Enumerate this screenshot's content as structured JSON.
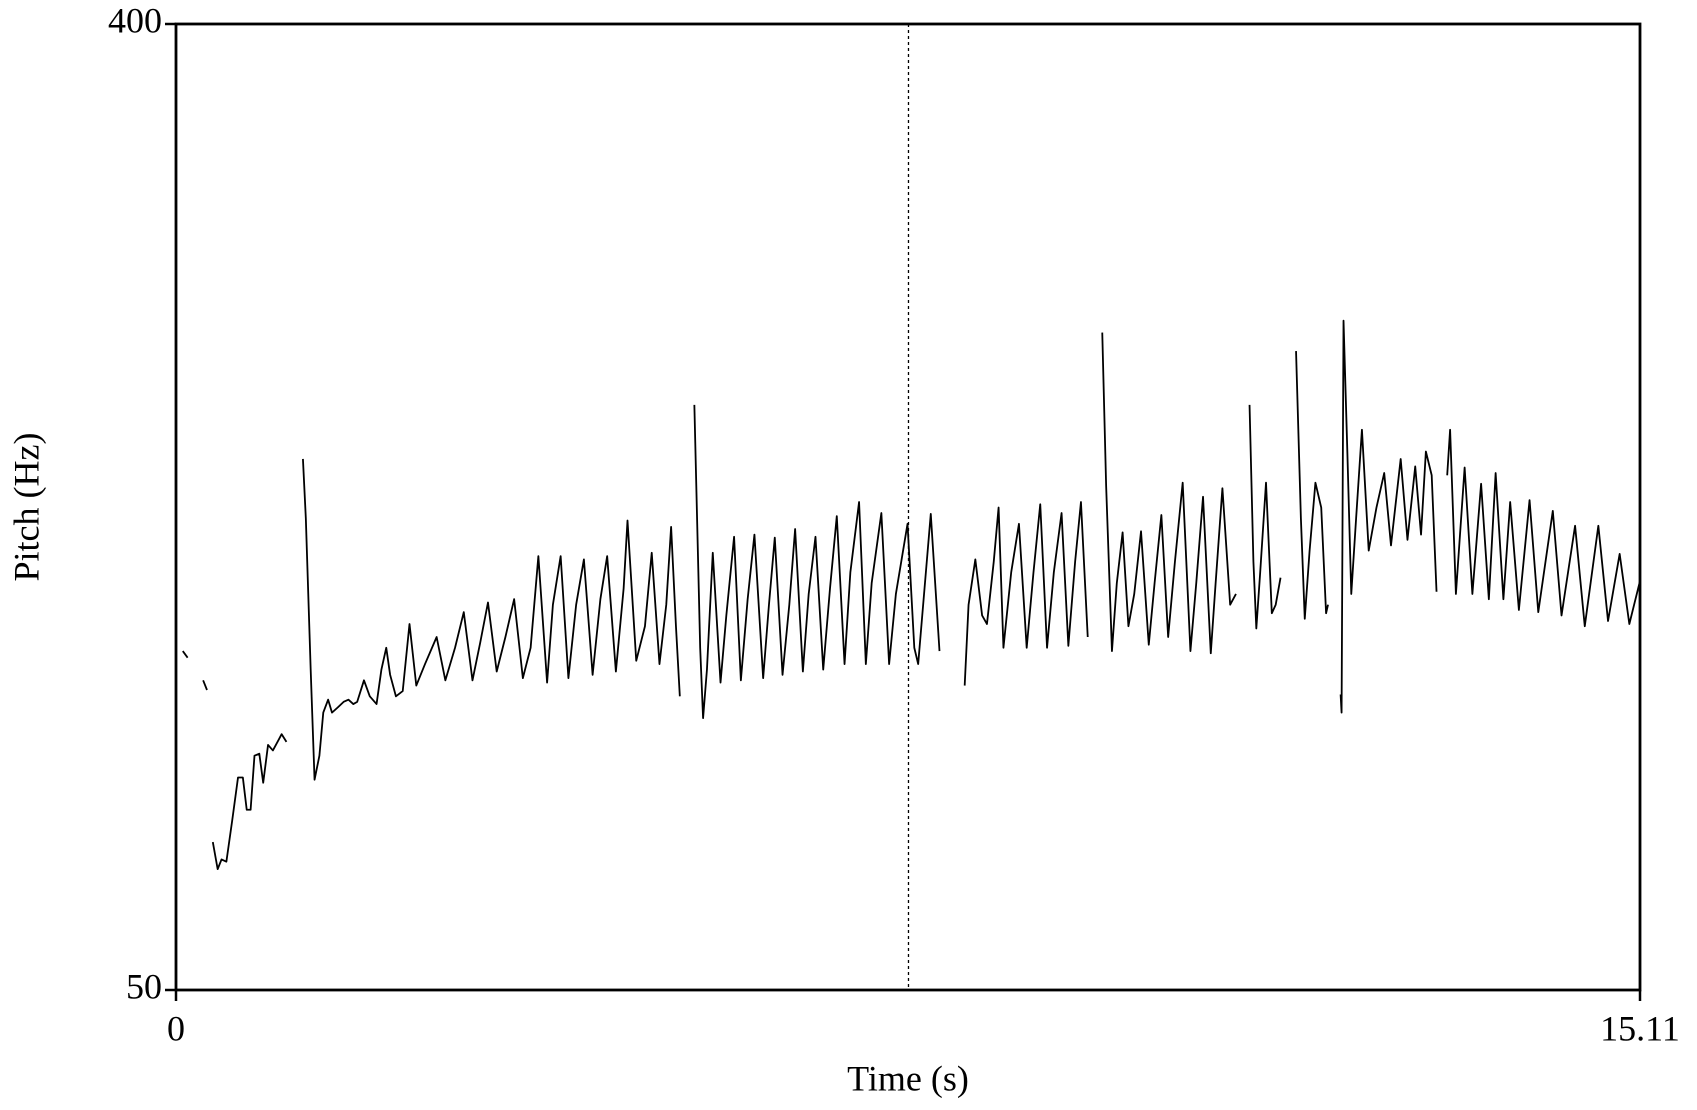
{
  "chart_data": {
    "type": "line",
    "xlabel": "Time (s)",
    "ylabel": "Pitch (Hz)",
    "xlim": [
      0,
      15.11
    ],
    "xticks": [
      0,
      15.11
    ],
    "ylim": [
      50,
      400
    ],
    "yticks": [
      50,
      400
    ],
    "color": "#000000",
    "cursor_x": 7.56,
    "x": [
      0.07,
      0.12,
      null,
      0.28,
      0.32,
      null,
      0.38,
      0.43,
      0.47,
      0.52,
      0.58,
      0.64,
      0.69,
      0.73,
      0.77,
      0.81,
      0.86,
      0.9,
      0.95,
      1.0,
      1.06,
      1.09,
      1.14,
      null,
      1.31,
      1.34,
      1.39,
      1.43,
      1.48,
      1.52,
      1.57,
      1.61,
      1.67,
      1.73,
      1.78,
      1.83,
      1.87,
      1.94,
      2.0,
      2.07,
      2.12,
      2.17,
      2.21,
      2.27,
      2.34,
      2.41,
      2.48,
      2.57,
      2.69,
      2.78,
      2.88,
      2.97,
      3.06,
      3.14,
      3.22,
      3.31,
      3.4,
      3.49,
      3.58,
      3.66,
      3.74,
      3.83,
      3.89,
      3.97,
      4.05,
      4.13,
      4.21,
      4.3,
      4.38,
      4.45,
      4.54,
      4.62,
      4.66,
      4.75,
      4.84,
      4.91,
      4.99,
      5.06,
      5.11,
      5.16,
      5.2,
      null,
      5.35,
      5.37,
      5.41,
      5.44,
      5.48,
      5.54,
      5.62,
      5.68,
      5.76,
      5.83,
      5.9,
      5.97,
      6.06,
      6.12,
      6.18,
      6.26,
      6.33,
      6.39,
      6.47,
      6.53,
      6.6,
      6.68,
      6.75,
      6.82,
      6.9,
      6.96,
      7.05,
      7.12,
      7.18,
      7.28,
      7.36,
      7.43,
      7.55,
      7.62,
      7.66,
      7.73,
      7.79,
      7.88,
      null,
      8.14,
      8.18,
      8.25,
      8.32,
      8.37,
      8.44,
      8.49,
      8.54,
      8.62,
      8.7,
      8.78,
      8.85,
      8.92,
      8.99,
      9.06,
      9.14,
      9.21,
      9.28,
      9.34,
      9.41,
      null,
      9.56,
      9.6,
      9.66,
      9.71,
      9.77,
      9.83,
      9.89,
      9.96,
      10.04,
      10.1,
      10.17,
      10.24,
      10.31,
      10.39,
      10.47,
      10.53,
      10.6,
      10.68,
      10.73,
      10.8,
      10.88,
      10.94,
      null,
      11.08,
      11.12,
      11.15,
      11.19,
      11.25,
      11.31,
      11.35,
      11.4,
      null,
      11.56,
      11.61,
      11.65,
      11.7,
      11.76,
      11.82,
      11.87,
      11.89,
      null,
      12.02,
      12.03,
      12.05,
      12.09,
      12.13,
      12.18,
      12.24,
      12.31,
      12.39,
      12.47,
      12.54,
      12.64,
      12.71,
      12.79,
      12.85,
      12.9,
      12.96,
      13.01,
      null,
      13.12,
      13.15,
      13.21,
      13.3,
      13.38,
      13.47,
      13.55,
      13.62,
      13.7,
      13.77,
      13.86,
      13.97,
      14.06,
      14.21,
      14.3,
      14.44,
      14.54,
      14.68,
      14.78,
      14.9,
      15.0,
      15.11
    ],
    "values": [
      172.8,
      170.4,
      null,
      162.2,
      158.7,
      null,
      103.6,
      93.8,
      97.3,
      96.5,
      111.4,
      127.0,
      127.0,
      115.3,
      115.3,
      134.9,
      135.6,
      125.1,
      138.8,
      136.8,
      140.7,
      142.7,
      139.9,
      null,
      242.4,
      220.9,
      166.1,
      126.2,
      134.9,
      150.5,
      155.2,
      150.5,
      152.4,
      154.4,
      155.2,
      153.6,
      154.4,
      162.2,
      156.4,
      153.6,
      166.1,
      174.0,
      164.2,
      156.4,
      158.3,
      182.6,
      160.3,
      168.1,
      177.9,
      162.2,
      174.0,
      186.9,
      162.2,
      175.9,
      190.4,
      165.4,
      177.9,
      191.6,
      163.0,
      174.0,
      207.2,
      161.4,
      189.6,
      207.2,
      163.0,
      189.6,
      206.0,
      164.2,
      191.6,
      207.2,
      165.4,
      195.5,
      220.1,
      169.3,
      181.8,
      208.4,
      168.1,
      189.6,
      217.8,
      181.8,
      156.4,
      null,
      262.0,
      232.6,
      174.0,
      148.5,
      166.1,
      208.4,
      161.4,
      185.7,
      214.2,
      162.2,
      191.6,
      215.0,
      163.0,
      189.6,
      213.9,
      164.2,
      189.6,
      217.0,
      165.4,
      193.5,
      214.2,
      166.1,
      195.5,
      221.7,
      168.1,
      201.3,
      226.8,
      168.1,
      197.4,
      222.8,
      168.1,
      193.5,
      218.9,
      174.0,
      168.1,
      197.4,
      222.5,
      172.8,
      null,
      160.3,
      189.6,
      206.0,
      185.7,
      182.6,
      205.2,
      224.8,
      174.0,
      201.3,
      218.9,
      174.0,
      201.3,
      226.0,
      174.0,
      201.3,
      222.8,
      174.7,
      205.2,
      226.8,
      177.9,
      null,
      288.2,
      232.6,
      172.8,
      197.4,
      215.8,
      181.8,
      193.5,
      216.2,
      175.1,
      197.4,
      222.1,
      177.9,
      205.2,
      233.8,
      172.8,
      197.4,
      228.7,
      172.0,
      197.4,
      231.8,
      189.6,
      193.5,
      null,
      262.0,
      205.2,
      181.0,
      201.3,
      233.8,
      186.5,
      189.6,
      199.4,
      null,
      281.5,
      220.9,
      184.5,
      209.2,
      233.8,
      224.8,
      186.5,
      189.6,
      null,
      157.1,
      150.5,
      292.5,
      244.4,
      193.5,
      220.9,
      253.0,
      209.2,
      224.8,
      237.3,
      211.1,
      242.4,
      213.1,
      239.7,
      215.0,
      245.1,
      236.5,
      194.3,
      null,
      236.5,
      253.0,
      193.5,
      239.3,
      193.5,
      233.4,
      191.6,
      237.3,
      191.6,
      226.8,
      187.7,
      227.5,
      186.9,
      223.6,
      185.7,
      218.2,
      181.8,
      218.2,
      183.7,
      208.0,
      182.6,
      198.2
    ]
  }
}
